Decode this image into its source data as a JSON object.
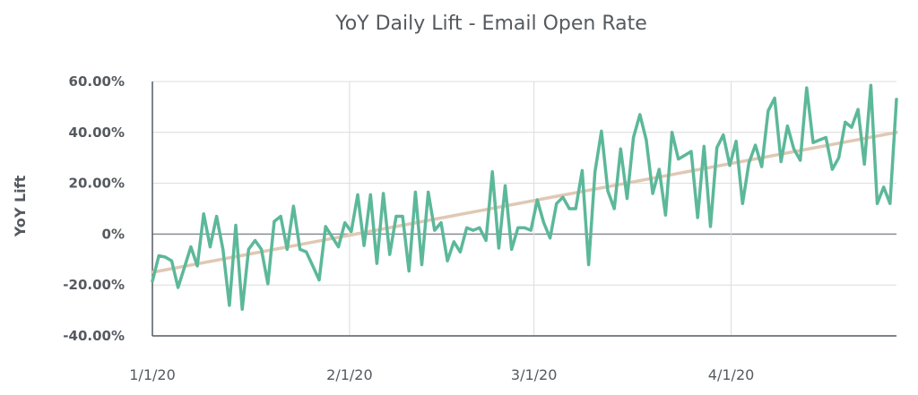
{
  "chart_data": {
    "type": "line",
    "title": "YoY Daily Lift - Email Open Rate",
    "xlabel": "",
    "ylabel": "YoY Lift",
    "x_tick_labels": [
      "1/1/20",
      "2/1/20",
      "3/1/20",
      "4/1/20"
    ],
    "x_tick_days": [
      0,
      31,
      60,
      91
    ],
    "x_range_days": [
      0,
      117
    ],
    "y_tick_labels": [
      "60.00%",
      "40.00%",
      "20.00%",
      "0%",
      "-20.00%",
      "-40.00%"
    ],
    "ylim": [
      -40,
      60
    ],
    "grid": true,
    "colors": {
      "series": "#5cb89a",
      "trend": "#e0c8b4",
      "grid": "#dcdcdc",
      "zero_line": "#8a8d92",
      "axis": "#555a60"
    },
    "series": [
      {
        "values": [
          -18.5,
          -8.5,
          -9,
          -10.5,
          -21,
          -13,
          -5,
          -12.5,
          8,
          -5,
          7,
          -6,
          -28,
          3.5,
          -29.5,
          -6,
          -2.5,
          -6,
          -19.5,
          5,
          7,
          -6,
          11,
          -6,
          -7,
          -12.5,
          -18,
          3,
          -1,
          -5,
          4.5,
          1,
          15.5,
          -4.5,
          15.5,
          -11.5,
          16,
          -8,
          7,
          7,
          -14.5,
          16.5,
          -12,
          16.5,
          1.5,
          4.5,
          -10.5,
          -3,
          -7,
          2.5,
          1.5,
          2.5,
          -2.5,
          24.5,
          -5.5,
          19,
          -6,
          2.5,
          2.5,
          1.5,
          13.5,
          4.5,
          -1.5,
          12,
          14.5,
          10,
          10,
          25,
          -12,
          24.5,
          40.5,
          17,
          10,
          33.5,
          14,
          38,
          47,
          37,
          16,
          25.5,
          7.5,
          40,
          29.5,
          31,
          32.5,
          6.5,
          34.5,
          3,
          34,
          39,
          27,
          36.5,
          12,
          28,
          35,
          26.5,
          48.5,
          53.5,
          28.5,
          42.5,
          33.5,
          29,
          57.5,
          36,
          37,
          38,
          25.5,
          30,
          44,
          42,
          49,
          27.5,
          58.5,
          12,
          18.5,
          12,
          53
        ]
      }
    ],
    "trend_line": {
      "start": -15,
      "end": 40
    }
  }
}
